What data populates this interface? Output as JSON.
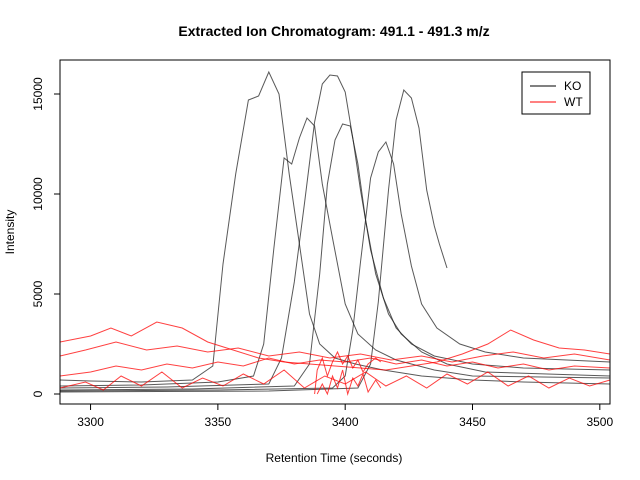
{
  "chart_data": {
    "type": "line",
    "title": "Extracted Ion Chromatogram: 491.1 - 491.3 m/z",
    "xlabel": "Retention Time (seconds)",
    "ylabel": "Intensity",
    "xlim": [
      3288,
      3504
    ],
    "ylim": [
      -500,
      16700
    ],
    "xticks": [
      3300,
      3350,
      3400,
      3450,
      3500
    ],
    "yticks": [
      0,
      5000,
      10000,
      15000
    ],
    "grid": false,
    "legend_position": "top-right",
    "legend": [
      {
        "label": "KO",
        "color": "#000000"
      },
      {
        "label": "WT",
        "color": "#ff0000"
      }
    ],
    "series": [
      {
        "name": "KO",
        "color": "#222222",
        "points": [
          [
            3288,
            700
          ],
          [
            3300,
            650
          ],
          [
            3320,
            600
          ],
          [
            3340,
            700
          ],
          [
            3348,
            1400
          ],
          [
            3352,
            6500
          ],
          [
            3357,
            11000
          ],
          [
            3362,
            14700
          ],
          [
            3366,
            14900
          ],
          [
            3370,
            16100
          ],
          [
            3374,
            15000
          ],
          [
            3378,
            11000
          ],
          [
            3382,
            7500
          ],
          [
            3386,
            4000
          ],
          [
            3390,
            2500
          ],
          [
            3396,
            1800
          ],
          [
            3404,
            1500
          ],
          [
            3415,
            1200
          ],
          [
            3430,
            900
          ],
          [
            3450,
            700
          ],
          [
            3470,
            600
          ],
          [
            3504,
            500
          ]
        ]
      },
      {
        "name": "KO",
        "color": "#222222",
        "points": [
          [
            3288,
            400
          ],
          [
            3320,
            450
          ],
          [
            3350,
            600
          ],
          [
            3364,
            900
          ],
          [
            3368,
            2500
          ],
          [
            3372,
            7300
          ],
          [
            3376,
            11800
          ],
          [
            3379,
            11500
          ],
          [
            3382,
            12800
          ],
          [
            3385,
            13800
          ],
          [
            3388,
            13400
          ],
          [
            3391,
            10500
          ],
          [
            3395,
            7800
          ],
          [
            3400,
            4500
          ],
          [
            3405,
            3000
          ],
          [
            3412,
            2200
          ],
          [
            3420,
            1700
          ],
          [
            3435,
            1200
          ],
          [
            3450,
            900
          ],
          [
            3504,
            800
          ]
        ]
      },
      {
        "name": "KO",
        "color": "#222222",
        "points": [
          [
            3288,
            300
          ],
          [
            3330,
            350
          ],
          [
            3370,
            500
          ],
          [
            3375,
            1800
          ],
          [
            3380,
            5600
          ],
          [
            3384,
            9500
          ],
          [
            3388,
            13600
          ],
          [
            3391,
            15500
          ],
          [
            3394,
            15950
          ],
          [
            3397,
            15900
          ],
          [
            3400,
            15100
          ],
          [
            3403,
            12800
          ],
          [
            3406,
            10200
          ],
          [
            3410,
            7200
          ],
          [
            3415,
            4800
          ],
          [
            3420,
            3300
          ],
          [
            3426,
            2500
          ],
          [
            3435,
            1900
          ],
          [
            3450,
            1500
          ],
          [
            3470,
            1300
          ],
          [
            3504,
            1200
          ]
        ]
      },
      {
        "name": "KO",
        "color": "#222222",
        "points": [
          [
            3288,
            200
          ],
          [
            3340,
            250
          ],
          [
            3380,
            400
          ],
          [
            3386,
            1500
          ],
          [
            3390,
            6000
          ],
          [
            3393,
            10500
          ],
          [
            3396,
            12700
          ],
          [
            3399,
            13500
          ],
          [
            3402,
            13400
          ],
          [
            3405,
            11500
          ],
          [
            3408,
            8700
          ],
          [
            3412,
            6000
          ],
          [
            3417,
            4000
          ],
          [
            3422,
            3000
          ],
          [
            3430,
            2100
          ],
          [
            3440,
            1500
          ],
          [
            3455,
            1100
          ],
          [
            3504,
            900
          ]
        ]
      },
      {
        "name": "KO",
        "color": "#222222",
        "points": [
          [
            3288,
            150
          ],
          [
            3350,
            200
          ],
          [
            3395,
            300
          ],
          [
            3400,
            900
          ],
          [
            3403,
            3200
          ],
          [
            3406,
            6600
          ],
          [
            3410,
            10800
          ],
          [
            3413,
            12100
          ],
          [
            3416,
            12600
          ],
          [
            3419,
            11500
          ],
          [
            3422,
            9000
          ],
          [
            3426,
            6400
          ],
          [
            3430,
            4500
          ],
          [
            3436,
            3300
          ],
          [
            3445,
            2500
          ],
          [
            3455,
            2100
          ],
          [
            3470,
            1800
          ],
          [
            3504,
            1600
          ]
        ]
      },
      {
        "name": "KO",
        "color": "#222222",
        "points": [
          [
            3288,
            100
          ],
          [
            3370,
            150
          ],
          [
            3405,
            300
          ],
          [
            3410,
            1500
          ],
          [
            3413,
            4600
          ],
          [
            3417,
            10200
          ],
          [
            3420,
            13700
          ],
          [
            3423,
            15200
          ],
          [
            3426,
            14800
          ],
          [
            3429,
            13300
          ],
          [
            3432,
            10200
          ],
          [
            3435,
            8400
          ],
          [
            3437,
            7500
          ],
          [
            3440,
            6300
          ]
        ]
      },
      {
        "name": "WT",
        "color": "#ff0000",
        "points": [
          [
            3288,
            900
          ],
          [
            3300,
            1100
          ],
          [
            3310,
            1400
          ],
          [
            3320,
            1200
          ],
          [
            3330,
            1500
          ],
          [
            3340,
            1300
          ],
          [
            3350,
            1600
          ],
          [
            3360,
            1400
          ],
          [
            3370,
            1800
          ],
          [
            3380,
            1500
          ],
          [
            3390,
            1700
          ],
          [
            3400,
            1600
          ],
          [
            3410,
            1800
          ],
          [
            3420,
            1500
          ],
          [
            3430,
            1700
          ],
          [
            3440,
            1400
          ],
          [
            3450,
            1600
          ],
          [
            3460,
            1300
          ],
          [
            3470,
            1500
          ],
          [
            3480,
            1200
          ],
          [
            3490,
            1400
          ],
          [
            3504,
            1300
          ]
        ]
      },
      {
        "name": "WT",
        "color": "#ff0000",
        "points": [
          [
            3288,
            2600
          ],
          [
            3300,
            2900
          ],
          [
            3308,
            3300
          ],
          [
            3316,
            2900
          ],
          [
            3326,
            3600
          ],
          [
            3336,
            3300
          ],
          [
            3346,
            2600
          ],
          [
            3356,
            2200
          ],
          [
            3366,
            1800
          ],
          [
            3376,
            1600
          ],
          [
            3386,
            1500
          ],
          [
            3396,
            1400
          ],
          [
            3406,
            1300
          ],
          [
            3416,
            1200
          ],
          [
            3426,
            1400
          ],
          [
            3436,
            1600
          ],
          [
            3446,
            2000
          ],
          [
            3456,
            2500
          ],
          [
            3465,
            3200
          ],
          [
            3474,
            2700
          ],
          [
            3484,
            2300
          ],
          [
            3494,
            2200
          ],
          [
            3504,
            2000
          ]
        ]
      },
      {
        "name": "WT",
        "color": "#ff0000",
        "points": [
          [
            3288,
            300
          ],
          [
            3298,
            600
          ],
          [
            3305,
            200
          ],
          [
            3312,
            900
          ],
          [
            3320,
            400
          ],
          [
            3328,
            1100
          ],
          [
            3336,
            300
          ],
          [
            3344,
            800
          ],
          [
            3352,
            400
          ],
          [
            3360,
            1000
          ],
          [
            3368,
            500
          ],
          [
            3376,
            1200
          ],
          [
            3384,
            300
          ],
          [
            3392,
            900
          ],
          [
            3400,
            500
          ],
          [
            3408,
            1100
          ],
          [
            3416,
            400
          ],
          [
            3424,
            900
          ],
          [
            3432,
            300
          ],
          [
            3440,
            1000
          ],
          [
            3448,
            500
          ],
          [
            3456,
            1100
          ],
          [
            3464,
            400
          ],
          [
            3472,
            900
          ],
          [
            3480,
            300
          ],
          [
            3488,
            800
          ],
          [
            3496,
            400
          ],
          [
            3504,
            700
          ]
        ]
      },
      {
        "name": "WT",
        "color": "#ff0000",
        "points": [
          [
            3388,
            0
          ],
          [
            3389,
            1200
          ],
          [
            3391,
            1800
          ],
          [
            3393,
            900
          ],
          [
            3395,
            1600
          ],
          [
            3397,
            2100
          ],
          [
            3399,
            1500
          ],
          [
            3401,
            1900
          ],
          [
            3403,
            1300
          ],
          [
            3405,
            1700
          ],
          [
            3407,
            1100
          ],
          [
            3409,
            1500
          ],
          [
            3412,
            1800
          ],
          [
            3414,
            1600
          ]
        ]
      },
      {
        "name": "WT",
        "color": "#ff0000",
        "points": [
          [
            3389,
            0
          ],
          [
            3391,
            500
          ],
          [
            3393,
            0
          ],
          [
            3395,
            900
          ],
          [
            3397,
            300
          ],
          [
            3399,
            1200
          ],
          [
            3401,
            0
          ],
          [
            3403,
            800
          ],
          [
            3405,
            400
          ],
          [
            3407,
            1000
          ],
          [
            3409,
            100
          ],
          [
            3412,
            700
          ],
          [
            3414,
            300
          ]
        ]
      },
      {
        "name": "WT",
        "color": "#ff0000",
        "points": [
          [
            3288,
            1900
          ],
          [
            3298,
            2200
          ],
          [
            3310,
            2600
          ],
          [
            3322,
            2200
          ],
          [
            3334,
            2400
          ],
          [
            3346,
            2100
          ],
          [
            3358,
            2300
          ],
          [
            3370,
            1900
          ],
          [
            3382,
            2100
          ],
          [
            3394,
            1800
          ],
          [
            3406,
            2000
          ],
          [
            3418,
            1700
          ],
          [
            3430,
            1900
          ],
          [
            3442,
            1600
          ],
          [
            3454,
            1900
          ],
          [
            3466,
            2100
          ],
          [
            3478,
            1800
          ],
          [
            3490,
            2000
          ],
          [
            3504,
            1700
          ]
        ]
      }
    ]
  }
}
